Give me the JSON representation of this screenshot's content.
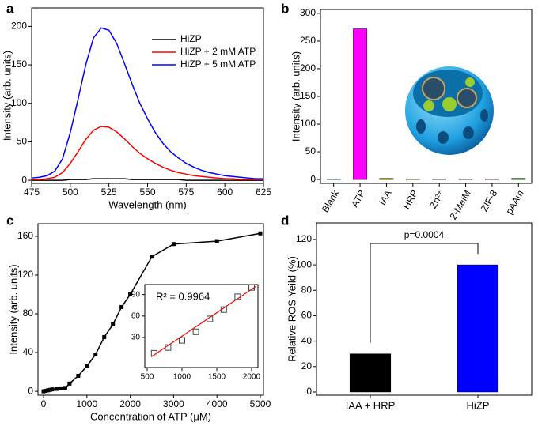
{
  "chart_data": [
    {
      "type": "line",
      "label": "a",
      "x_label": "Wavelength (nm)",
      "y_label": "Intensity (arb. units)",
      "x": [
        475,
        480,
        485,
        490,
        495,
        500,
        505,
        510,
        515,
        520,
        525,
        530,
        535,
        540,
        545,
        550,
        555,
        560,
        565,
        570,
        575,
        580,
        585,
        590,
        595,
        600,
        605,
        610,
        615,
        620,
        625
      ],
      "series": [
        {
          "name": "HiZP",
          "color": "#000000",
          "values": [
            0,
            0,
            0,
            0,
            0,
            1,
            1,
            1,
            2,
            2,
            2,
            2,
            2,
            1,
            1,
            1,
            1,
            1,
            1,
            1,
            0,
            0,
            0,
            0,
            0,
            0,
            0,
            0,
            0,
            0,
            0
          ]
        },
        {
          "name": "HiZP + 2 mM ATP",
          "color": "#ff0000",
          "values": [
            1,
            1,
            2,
            4,
            10,
            22,
            37,
            53,
            65,
            70,
            69,
            63,
            54,
            44,
            35,
            28,
            22,
            17,
            13,
            10,
            8,
            6,
            5,
            4,
            3,
            2,
            2,
            1,
            1,
            1,
            1
          ]
        },
        {
          "name": "HiZP + 5 mM ATP",
          "color": "#0000ff",
          "values": [
            3,
            4,
            6,
            12,
            28,
            62,
            105,
            150,
            185,
            198,
            195,
            178,
            152,
            125,
            100,
            80,
            62,
            48,
            37,
            29,
            22,
            17,
            13,
            10,
            8,
            6,
            5,
            4,
            3,
            2,
            2
          ]
        }
      ],
      "xlim": [
        475,
        625
      ],
      "xticks": [
        475,
        500,
        525,
        550,
        575,
        600,
        625
      ],
      "ylim": [
        -4,
        224
      ],
      "yticks": [
        0,
        50,
        100,
        150,
        200
      ],
      "legend": "upper-right"
    },
    {
      "type": "bar",
      "label": "b",
      "y_label": "Intensity (arb. units)",
      "categories": [
        "Blank",
        "ATP",
        "IAA",
        "HRP",
        "Zn²⁺",
        "2-MeIM",
        "ZIF-8",
        "pAAm"
      ],
      "values": [
        1,
        272,
        2,
        1,
        1,
        1,
        1,
        2
      ],
      "colors": [
        "#00e0e0",
        "#ff00ff",
        "#e0e000",
        "#8b8b00",
        "#00008b",
        "#800080",
        "#8b0000",
        "#008000"
      ],
      "ylim": [
        -7,
        307
      ],
      "yticks": [
        0,
        50,
        100,
        150,
        200,
        250,
        300
      ]
    },
    {
      "type": "line",
      "label": "c",
      "x_label": "Concentration of ATP (μM)",
      "y_label": "Intensity (arb. units)",
      "x": [
        0,
        50,
        100,
        150,
        200,
        300,
        400,
        500,
        600,
        800,
        1000,
        1200,
        1400,
        1600,
        1800,
        2000,
        2500,
        3000,
        4000,
        5000
      ],
      "series": [
        {
          "color": "#000000",
          "values": [
            0,
            0.5,
            1,
            1.5,
            2,
            2.5,
            3,
            3.5,
            8,
            16,
            26,
            38,
            56,
            69,
            87,
            100,
            139,
            152,
            155,
            163
          ]
        }
      ],
      "xlim": [
        -128,
        5073
      ],
      "xticks": [
        0,
        1000,
        2000,
        3000,
        4000,
        5000
      ],
      "ylim": [
        -4,
        173
      ],
      "yticks": [
        0,
        40,
        80,
        120,
        160
      ],
      "inset": {
        "annotation": "R² = 0.9964",
        "x": [
          600,
          800,
          1000,
          1200,
          1400,
          1600,
          1800,
          2000
        ],
        "values": [
          8,
          16,
          26,
          38,
          56,
          69,
          87,
          100
        ],
        "fit": {
          "color": "#ff0000",
          "x": [
            560,
            2070
          ],
          "values": [
            3,
            102
          ]
        },
        "xlim": [
          466,
          2091
        ],
        "xticks": [
          500,
          1000,
          1500,
          2000
        ],
        "ylim": [
          -12,
          104
        ],
        "yticks": [
          30,
          60,
          90
        ]
      }
    },
    {
      "type": "bar",
      "label": "d",
      "y_label": "Relative ROS Yeild (%)",
      "categories": [
        "IAA + HRP",
        "HiZP"
      ],
      "values": [
        30,
        100
      ],
      "colors": [
        "#000000",
        "#0000ff"
      ],
      "annotation": "p=0.0004",
      "ylim": [
        -2.5,
        133
      ],
      "yticks": [
        0,
        20,
        40,
        60,
        80,
        100,
        120
      ]
    }
  ]
}
